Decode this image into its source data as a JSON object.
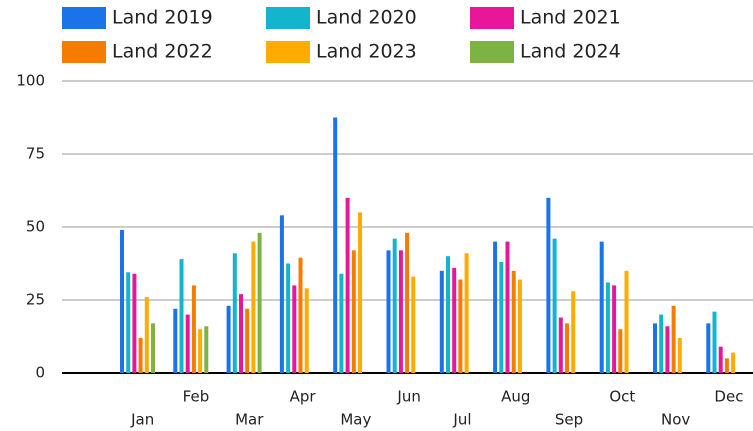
{
  "chart_data": {
    "type": "bar",
    "categories": [
      "Jan",
      "Feb",
      "Mar",
      "Apr",
      "May",
      "Jun",
      "Jul",
      "Aug",
      "Sep",
      "Oct",
      "Nov",
      "Dec"
    ],
    "series": [
      {
        "name": "Land 2019",
        "color": "#1a73e8",
        "values": [
          49,
          22,
          23,
          54,
          87.5,
          42,
          35,
          45,
          60,
          45,
          17,
          17
        ]
      },
      {
        "name": "Land 2020",
        "color": "#12b5cb",
        "values": [
          34.5,
          39,
          41,
          37.5,
          34,
          46,
          40,
          38,
          46,
          31,
          20,
          21
        ]
      },
      {
        "name": "Land 2021",
        "color": "#e8179a",
        "values": [
          34,
          20,
          27,
          30,
          60,
          42,
          36,
          45,
          19,
          30,
          16,
          9
        ]
      },
      {
        "name": "Land 2022",
        "color": "#f57c00",
        "values": [
          12,
          30,
          22,
          39.5,
          42,
          48,
          32,
          35,
          17,
          15,
          23,
          5
        ]
      },
      {
        "name": "Land 2023",
        "color": "#ffab00",
        "values": [
          26,
          15,
          45,
          29,
          55,
          33,
          41,
          32,
          28,
          35,
          12,
          7
        ]
      },
      {
        "name": "Land 2024",
        "color": "#7cb342",
        "values": [
          17,
          16,
          48,
          null,
          null,
          null,
          null,
          null,
          null,
          null,
          null,
          null
        ]
      }
    ],
    "ylim": [
      0,
      100
    ],
    "yticks": [
      0,
      25,
      50,
      75,
      100
    ],
    "grid": true
  }
}
